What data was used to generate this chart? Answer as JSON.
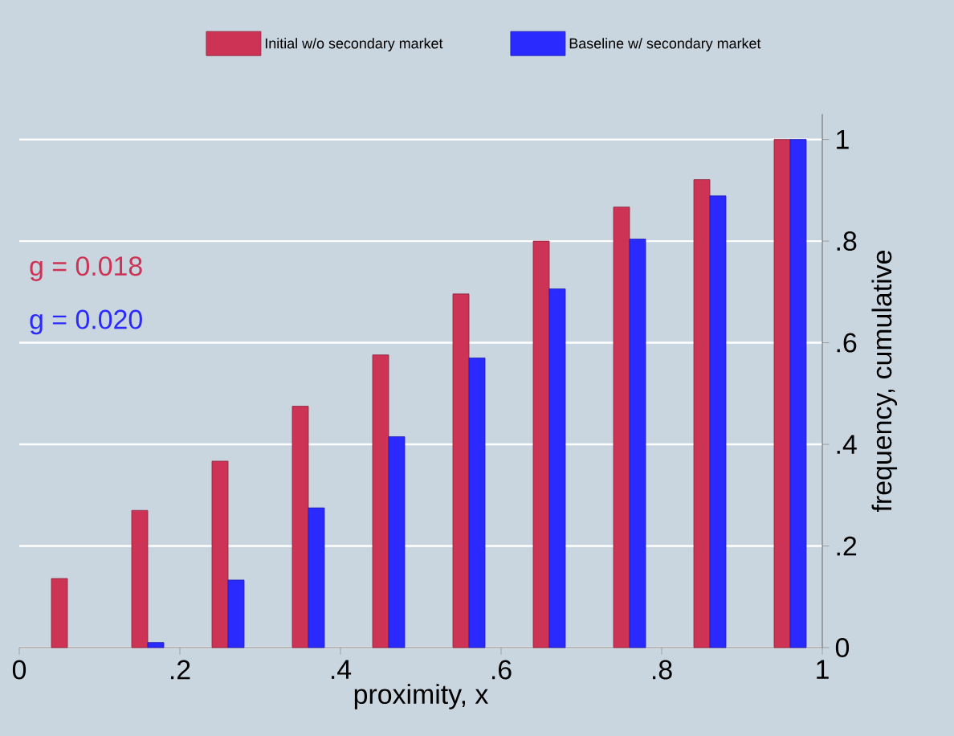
{
  "chart_data": {
    "type": "bar",
    "xlabel": "proximity, x",
    "ylabel": "frequency, cumulative",
    "series": [
      {
        "name": "Initial w/o secondary market",
        "color": "#cc3355",
        "x": [
          0.05,
          0.15,
          0.25,
          0.35,
          0.45,
          0.55,
          0.65,
          0.75,
          0.85,
          0.95
        ],
        "values": [
          0.136,
          0.27,
          0.367,
          0.475,
          0.576,
          0.696,
          0.8,
          0.867,
          0.921,
          1.0
        ]
      },
      {
        "name": "Baseline w/ secondary market",
        "color": "#2a2aff",
        "x": [
          0.17,
          0.27,
          0.37,
          0.47,
          0.57,
          0.67,
          0.77,
          0.87,
          0.97
        ],
        "values": [
          0.01,
          0.133,
          0.275,
          0.415,
          0.57,
          0.706,
          0.804,
          0.889,
          1.0
        ]
      }
    ],
    "annotations": [
      "g = 0.018",
      "g = 0.020"
    ],
    "xlim": [
      0,
      1
    ],
    "xticks": [
      0,
      {
        "value": 0.2,
        "label": ".2"
      },
      {
        "value": 0.4,
        "label": ".4"
      },
      {
        "value": 0.6,
        "label": ".6"
      },
      {
        "value": 0.8,
        "label": ".8"
      },
      1
    ],
    "ylim": [
      0,
      1.05
    ],
    "yticks": [
      0,
      {
        "value": 0.2,
        "label": ".2"
      },
      {
        "value": 0.4,
        "label": ".4"
      },
      {
        "value": 0.6,
        "label": ".6"
      },
      {
        "value": 0.8,
        "label": ".8"
      },
      1
    ],
    "grid": "y",
    "legend": "top"
  }
}
